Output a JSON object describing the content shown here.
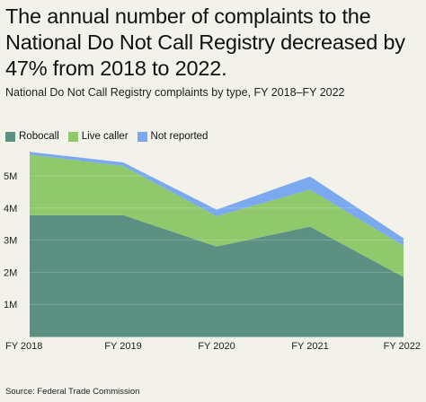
{
  "header": {
    "title": "The annual number of complaints to the National Do Not Call Registry decreased by 47% from 2018 to 2022.",
    "subtitle": "National Do Not Call Registry complaints by type, FY 2018–FY 2022"
  },
  "footer": {
    "source": "Source: Federal Trade Commission"
  },
  "colors": {
    "robocall": "#5c9083",
    "live": "#8fc96b",
    "not_reported": "#7ba9f0",
    "background": "#f2f1ea"
  },
  "chart_data": {
    "type": "area",
    "stacked": true,
    "title": "The annual number of complaints to the National Do Not Call Registry decreased by 47% from 2018 to 2022.",
    "subtitle": "National Do Not Call Registry complaints by type, FY 2018–FY 2022",
    "categories": [
      "FY 2018",
      "FY 2019",
      "FY 2020",
      "FY 2021",
      "FY 2022"
    ],
    "series": [
      {
        "name": "Robocall",
        "values": [
          3.78,
          3.78,
          2.8,
          3.42,
          1.85
        ]
      },
      {
        "name": "Live caller",
        "values": [
          1.88,
          1.53,
          0.95,
          1.15,
          0.98
        ]
      },
      {
        "name": "Not reported",
        "values": [
          0.09,
          0.11,
          0.2,
          0.41,
          0.23
        ]
      }
    ],
    "y_tick_labels": [
      "1M",
      "2M",
      "3M",
      "4M",
      "5M"
    ],
    "y_ticks": [
      1,
      2,
      3,
      4,
      5
    ],
    "ylim": [
      0,
      6
    ],
    "grid": true,
    "legend_position": "top-left"
  }
}
